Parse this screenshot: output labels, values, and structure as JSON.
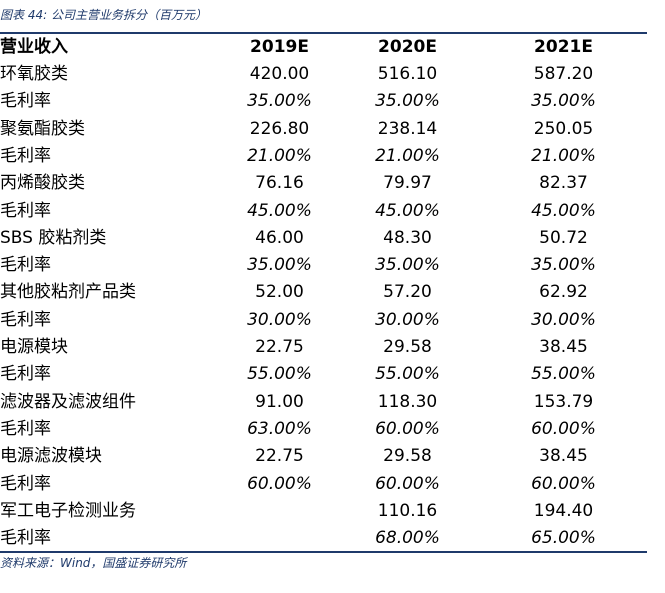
{
  "caption": "图表 44: 公司主营业务拆分（百万元）",
  "source": "资料来源：Wind，国盛证券研究所",
  "header": {
    "label": "营业收入",
    "years": [
      "2019E",
      "2020E",
      "2021E"
    ]
  },
  "rows": [
    {
      "label": "环氧胶类",
      "values": [
        "420.00",
        "516.10",
        "587.20"
      ],
      "kind": "revenue"
    },
    {
      "label": "毛利率",
      "values": [
        "35.00%",
        "35.00%",
        "35.00%"
      ],
      "kind": "margin"
    },
    {
      "label": "聚氨酯胶类",
      "values": [
        "226.80",
        "238.14",
        "250.05"
      ],
      "kind": "revenue"
    },
    {
      "label": "毛利率",
      "values": [
        "21.00%",
        "21.00%",
        "21.00%"
      ],
      "kind": "margin"
    },
    {
      "label": "丙烯酸胶类",
      "values": [
        "76.16",
        "79.97",
        "82.37"
      ],
      "kind": "revenue"
    },
    {
      "label": "毛利率",
      "values": [
        "45.00%",
        "45.00%",
        "45.00%"
      ],
      "kind": "margin"
    },
    {
      "label": "SBS 胶粘剂类",
      "values": [
        "46.00",
        "48.30",
        "50.72"
      ],
      "kind": "revenue"
    },
    {
      "label": "毛利率",
      "values": [
        "35.00%",
        "35.00%",
        "35.00%"
      ],
      "kind": "margin"
    },
    {
      "label": "其他胶粘剂产品类",
      "values": [
        "52.00",
        "57.20",
        "62.92"
      ],
      "kind": "revenue"
    },
    {
      "label": "毛利率",
      "values": [
        "30.00%",
        "30.00%",
        "30.00%"
      ],
      "kind": "margin"
    },
    {
      "label": "电源模块",
      "values": [
        "22.75",
        "29.58",
        "38.45"
      ],
      "kind": "revenue"
    },
    {
      "label": "毛利率",
      "values": [
        "55.00%",
        "55.00%",
        "55.00%"
      ],
      "kind": "margin"
    },
    {
      "label": "滤波器及滤波组件",
      "values": [
        "91.00",
        "118.30",
        "153.79"
      ],
      "kind": "revenue"
    },
    {
      "label": "毛利率",
      "values": [
        "63.00%",
        "60.00%",
        "60.00%"
      ],
      "kind": "margin"
    },
    {
      "label": "电源滤波模块",
      "values": [
        "22.75",
        "29.58",
        "38.45"
      ],
      "kind": "revenue"
    },
    {
      "label": "毛利率",
      "values": [
        "60.00%",
        "60.00%",
        "60.00%"
      ],
      "kind": "margin"
    },
    {
      "label": "军工电子检测业务",
      "values": [
        "",
        "110.16",
        "194.40"
      ],
      "kind": "revenue"
    },
    {
      "label": "毛利率",
      "values": [
        "",
        "68.00%",
        "65.00%"
      ],
      "kind": "margin"
    }
  ]
}
